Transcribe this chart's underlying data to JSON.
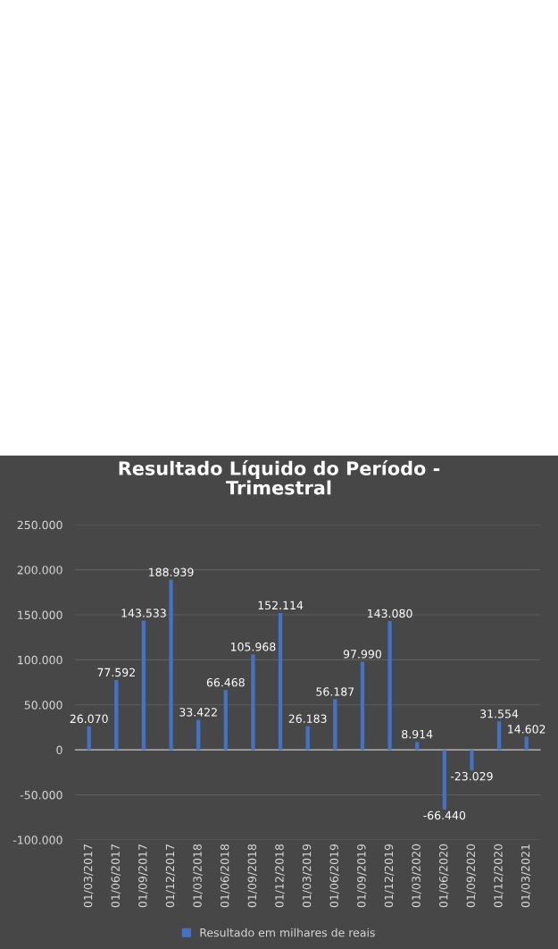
{
  "chart_data": {
    "type": "bar",
    "title": "Resultado Líquido do Período -\nTrimestral",
    "categories": [
      "01/03/2017",
      "01/06/2017",
      "01/09/2017",
      "01/12/2017",
      "01/03/2018",
      "01/06/2018",
      "01/09/2018",
      "01/12/2018",
      "01/03/2019",
      "01/06/2019",
      "01/09/2019",
      "01/12/2019",
      "01/03/2020",
      "01/06/2020",
      "01/09/2020",
      "01/12/2020",
      "01/03/2021"
    ],
    "series": [
      {
        "name": "Resultado em milhares de reais",
        "color": "#4472c4",
        "values": [
          26070,
          77592,
          143533,
          188939,
          33422,
          66468,
          105968,
          152114,
          26183,
          56187,
          97990,
          143080,
          8914,
          -66440,
          -23029,
          31554,
          14602
        ],
        "value_labels": [
          "26.070",
          "77.592",
          "143.533",
          "188.939",
          "33.422",
          "66.468",
          "105.968",
          "152.114",
          "26.183",
          "56.187",
          "97.990",
          "143.080",
          "8.914",
          "-66.440",
          "-23.029",
          "31.554",
          "14.602"
        ]
      }
    ],
    "ylim": [
      -100000,
      250000
    ],
    "yticks": [
      {
        "value": -100000,
        "label": "-100.000"
      },
      {
        "value": -50000,
        "label": "-50.000"
      },
      {
        "value": 0,
        "label": "0"
      },
      {
        "value": 50000,
        "label": "50.000"
      },
      {
        "value": 100000,
        "label": "100.000"
      },
      {
        "value": 150000,
        "label": "150.000"
      },
      {
        "value": 200000,
        "label": "200.000"
      },
      {
        "value": 250000,
        "label": "250.000"
      }
    ],
    "grid": "y",
    "legend": "bottom"
  }
}
